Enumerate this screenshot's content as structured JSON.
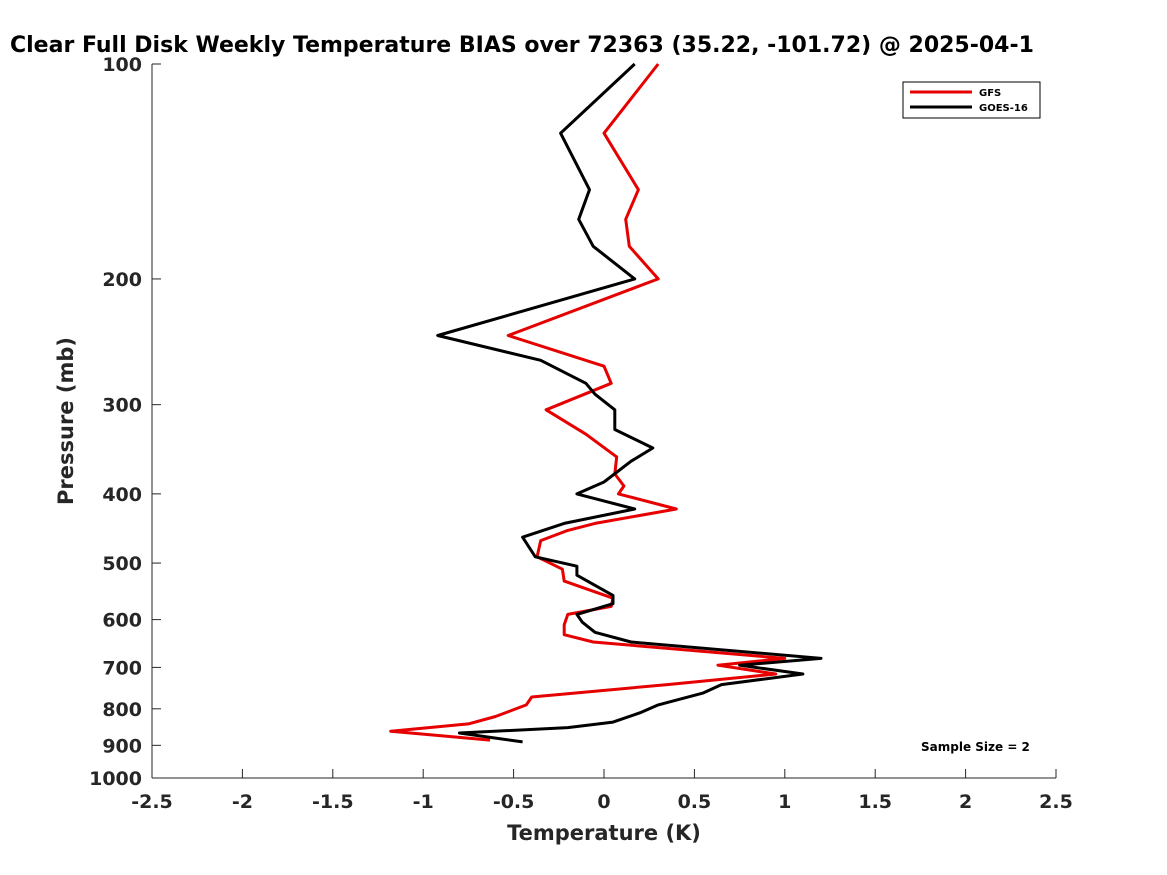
{
  "chart_data": {
    "type": "line",
    "title": "Clear Full Disk Weekly Temperature BIAS over 72363 (35.22, -101.72) @ 2025-04-1",
    "xlabel": "Temperature (K)",
    "ylabel": "Pressure (mb)",
    "xlim": [
      -2.5,
      2.5
    ],
    "ylim": [
      100,
      1000
    ],
    "y_scale": "log",
    "y_reversed": true,
    "x_ticks": [
      -2.5,
      -2,
      -1.5,
      -1,
      -0.5,
      0,
      0.5,
      1,
      1.5,
      2,
      2.5
    ],
    "x_tick_labels": [
      "-2.5",
      "-2",
      "-1.5",
      "-1",
      "-0.5",
      "0",
      "0.5",
      "1",
      "1.5",
      "2",
      "2.5"
    ],
    "y_ticks": [
      100,
      200,
      300,
      400,
      500,
      600,
      700,
      800,
      900,
      1000
    ],
    "y_tick_labels": [
      "100",
      "200",
      "300",
      "400",
      "500",
      "600",
      "700",
      "800",
      "900",
      "1000"
    ],
    "grid": false,
    "legend_position": "top-right",
    "series": [
      {
        "name": "GFS",
        "color": "#e60000",
        "points": [
          [
            0.3,
            100
          ],
          [
            0.0,
            125
          ],
          [
            0.19,
            150
          ],
          [
            0.12,
            165
          ],
          [
            0.14,
            180
          ],
          [
            0.3,
            200
          ],
          [
            -0.53,
            240
          ],
          [
            0.0,
            265
          ],
          [
            0.04,
            280
          ],
          [
            -0.32,
            305
          ],
          [
            -0.1,
            330
          ],
          [
            0.07,
            355
          ],
          [
            0.06,
            375
          ],
          [
            0.11,
            390
          ],
          [
            0.08,
            400
          ],
          [
            0.4,
            420
          ],
          [
            -0.05,
            440
          ],
          [
            -0.2,
            450
          ],
          [
            -0.35,
            465
          ],
          [
            -0.37,
            490
          ],
          [
            -0.23,
            510
          ],
          [
            -0.22,
            530
          ],
          [
            0.05,
            560
          ],
          [
            0.04,
            575
          ],
          [
            -0.2,
            590
          ],
          [
            -0.22,
            610
          ],
          [
            -0.22,
            630
          ],
          [
            -0.06,
            645
          ],
          [
            1.0,
            680
          ],
          [
            0.63,
            695
          ],
          [
            0.95,
            715
          ],
          [
            0.35,
            740
          ],
          [
            -0.4,
            770
          ],
          [
            -0.43,
            790
          ],
          [
            -0.6,
            820
          ],
          [
            -0.75,
            840
          ],
          [
            -1.18,
            860
          ],
          [
            -0.63,
            885
          ]
        ]
      },
      {
        "name": "GOES-16",
        "color": "#000000",
        "points": [
          [
            0.17,
            100
          ],
          [
            -0.24,
            125
          ],
          [
            -0.08,
            150
          ],
          [
            -0.14,
            165
          ],
          [
            -0.06,
            180
          ],
          [
            0.17,
            200
          ],
          [
            -0.92,
            240
          ],
          [
            -0.35,
            260
          ],
          [
            -0.1,
            280
          ],
          [
            -0.05,
            290
          ],
          [
            0.06,
            305
          ],
          [
            0.06,
            325
          ],
          [
            0.27,
            345
          ],
          [
            0.15,
            360
          ],
          [
            0.0,
            385
          ],
          [
            -0.15,
            400
          ],
          [
            0.17,
            420
          ],
          [
            -0.22,
            440
          ],
          [
            -0.45,
            460
          ],
          [
            -0.38,
            490
          ],
          [
            -0.15,
            505
          ],
          [
            -0.15,
            520
          ],
          [
            0.05,
            555
          ],
          [
            0.05,
            570
          ],
          [
            -0.15,
            590
          ],
          [
            -0.12,
            605
          ],
          [
            -0.05,
            625
          ],
          [
            0.15,
            645
          ],
          [
            1.2,
            680
          ],
          [
            0.75,
            695
          ],
          [
            1.1,
            715
          ],
          [
            0.65,
            740
          ],
          [
            0.55,
            760
          ],
          [
            0.3,
            790
          ],
          [
            0.2,
            810
          ],
          [
            0.05,
            835
          ],
          [
            -0.2,
            850
          ],
          [
            -0.8,
            865
          ],
          [
            -0.45,
            890
          ]
        ]
      }
    ],
    "annotation": "Sample Size = 2"
  }
}
